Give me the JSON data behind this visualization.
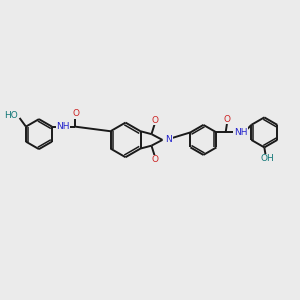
{
  "bg_color": "#ebebeb",
  "bond_color": "#1a1a1a",
  "N_color": "#2222cc",
  "O_color": "#cc2222",
  "OH_color": "#117777",
  "lw": 1.4,
  "lw_dbl": 1.1,
  "fs": 6.5,
  "figsize": [
    3.0,
    3.0
  ],
  "dpi": 100,
  "xlim": [
    0,
    10
  ],
  "ylim": [
    0,
    10
  ]
}
